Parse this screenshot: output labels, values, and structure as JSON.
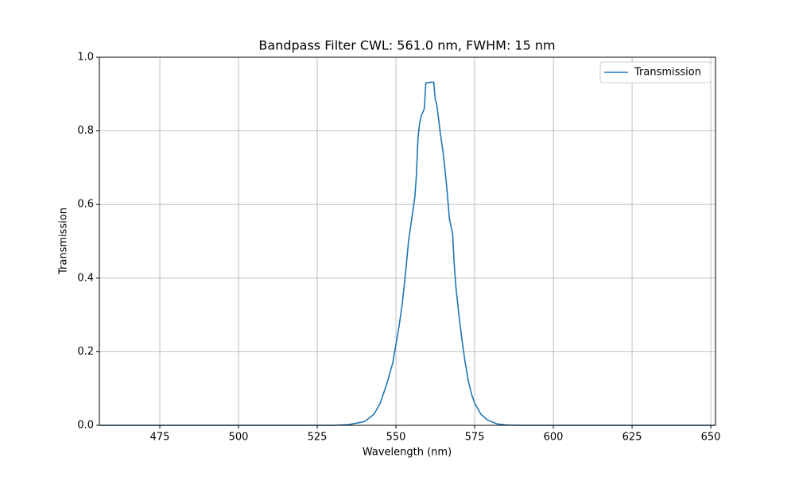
{
  "chart_data": {
    "type": "line",
    "title": "Bandpass Filter CWL: 561.0 nm, FWHM: 15 nm",
    "xlabel": "Wavelength (nm)",
    "ylabel": "Transmission",
    "x": [
      456,
      530,
      535,
      540,
      543,
      545,
      547,
      549,
      550,
      551,
      552,
      553,
      554,
      555,
      556,
      556.5,
      557,
      557.5,
      558,
      559,
      559.5,
      561,
      562,
      562.5,
      563,
      564,
      565,
      566,
      567,
      568,
      568.5,
      569,
      570,
      571,
      572,
      573,
      574,
      575,
      577,
      579,
      582,
      585,
      590,
      651
    ],
    "series": [
      {
        "name": "Transmission",
        "color": "#1f77b4",
        "values": [
          0,
          0,
          0.002,
          0.01,
          0.03,
          0.06,
          0.11,
          0.17,
          0.22,
          0.27,
          0.33,
          0.41,
          0.5,
          0.56,
          0.62,
          0.68,
          0.78,
          0.82,
          0.84,
          0.86,
          0.93,
          0.932,
          0.932,
          0.885,
          0.87,
          0.8,
          0.74,
          0.66,
          0.56,
          0.52,
          0.44,
          0.38,
          0.3,
          0.23,
          0.17,
          0.12,
          0.085,
          0.06,
          0.03,
          0.015,
          0.004,
          0.001,
          0,
          0
        ]
      }
    ],
    "xlim": [
      455.8,
      651.5
    ],
    "ylim": [
      0,
      1
    ],
    "xticks": [
      475,
      500,
      525,
      550,
      575,
      600,
      625,
      650
    ],
    "yticks": [
      {
        "value": 0,
        "label": "0.0"
      },
      0.2,
      0.4,
      0.6,
      0.8,
      {
        "value": 1,
        "label": "1.0"
      }
    ],
    "grid": true,
    "legend": "upper right"
  }
}
